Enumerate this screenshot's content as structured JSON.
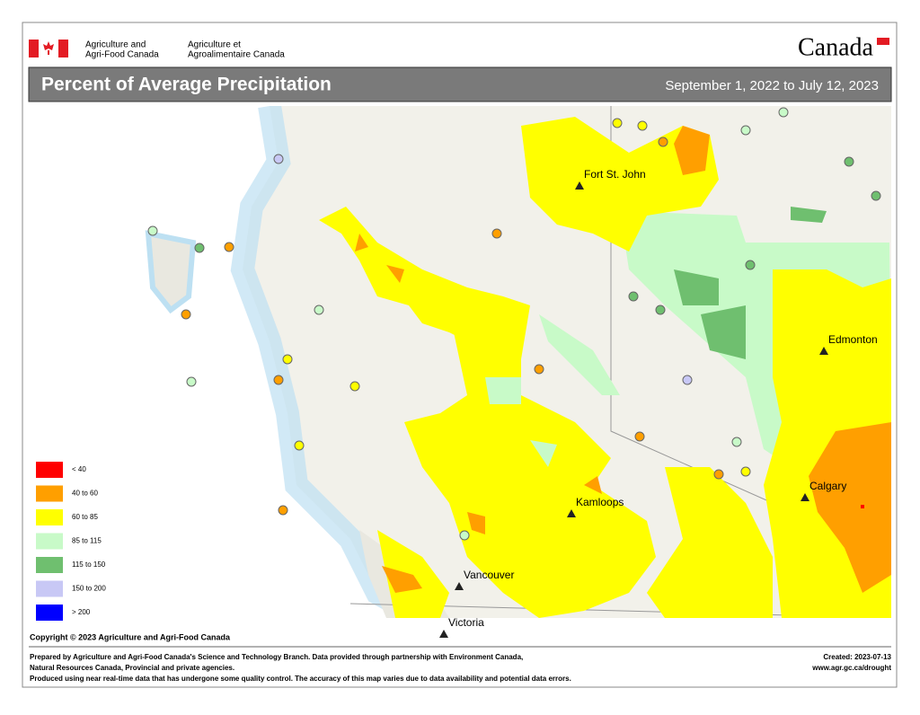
{
  "header": {
    "agency_en": [
      "Agriculture and",
      "Agri-Food Canada"
    ],
    "agency_fr": [
      "Agriculture et",
      "Agroalimentaire Canada"
    ],
    "wordmark": "Canada"
  },
  "title": "Percent of Average Precipitation",
  "period": "September 1, 2022 to July 12, 2023",
  "legend": [
    {
      "label": "< 40",
      "color": "#ff0000"
    },
    {
      "label": "40 to 60",
      "color": "#ff9f00"
    },
    {
      "label": "60 to 85",
      "color": "#ffff00"
    },
    {
      "label": "85 to 115",
      "color": "#c8fac8"
    },
    {
      "label": "115 to 150",
      "color": "#6fbf6f"
    },
    {
      "label": "150 to 200",
      "color": "#c8c8f5"
    },
    {
      "label": "> 200",
      "color": "#0000ff"
    }
  ],
  "cities": [
    "Fort St. John",
    "Edmonton",
    "Kamloops",
    "Calgary",
    "Vancouver",
    "Victoria"
  ],
  "copyright": "Copyright © 2023 Agriculture and Agri-Food Canada",
  "footer": {
    "lines": [
      "Prepared by Agriculture and Agri-Food Canada's Science and Technology Branch. Data provided through partnership with Environment Canada,",
      "Natural Resources Canada, Provincial and private agencies.",
      "Produced using near real-time data that has undergone some quality control. The accuracy of this map varies due to data availability and potential data errors."
    ],
    "created": "Created: 2023-07-13",
    "url": "www.agr.gc.ca/drought"
  }
}
